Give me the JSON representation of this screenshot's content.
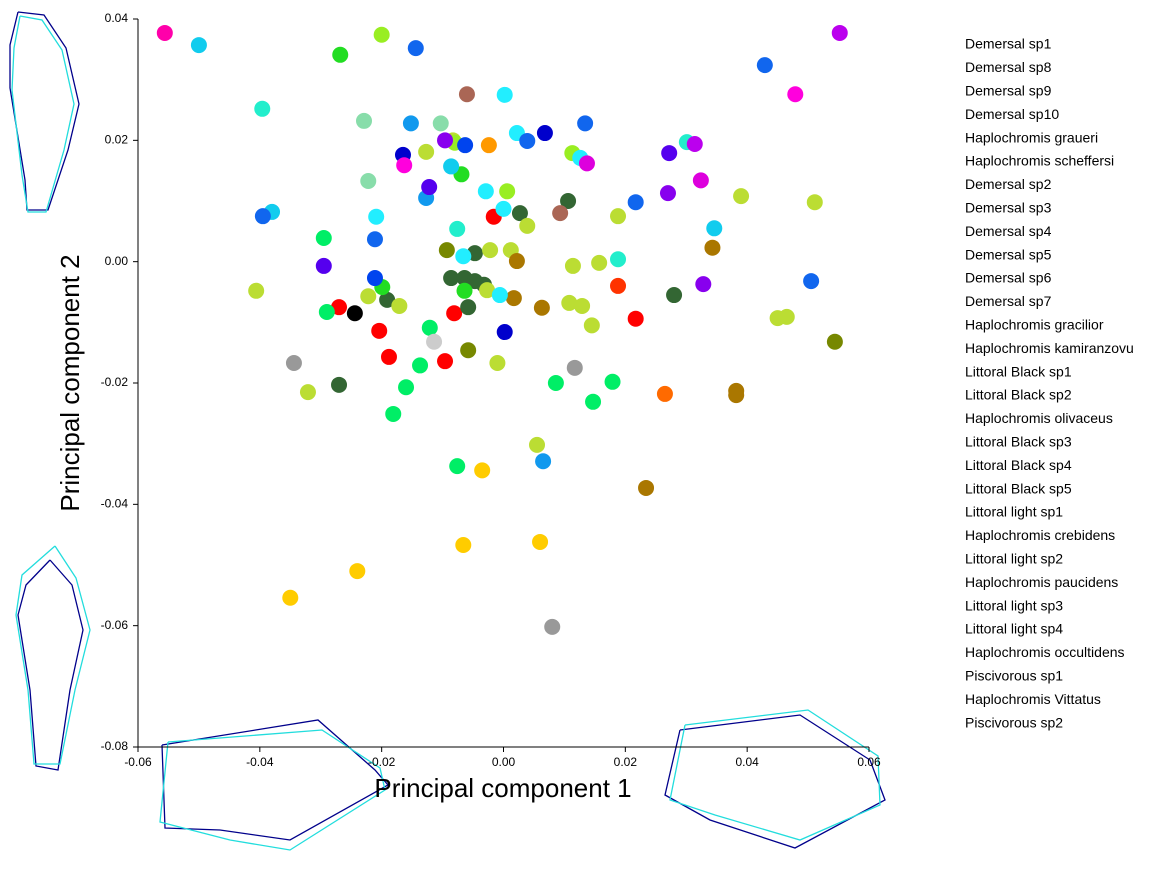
{
  "chart_data": {
    "type": "scatter",
    "x_label": "Principal component 1",
    "y_label": "Principal component 2",
    "xlim": [
      -0.06,
      0.06
    ],
    "ylim": [
      -0.08,
      0.04
    ],
    "xticks": [
      -0.06,
      -0.04,
      -0.02,
      {
        "value": 0,
        "label": "0.00"
      },
      0.02,
      0.04,
      0.06
    ],
    "yticks": [
      0.04,
      0.02,
      {
        "value": 0,
        "label": "0.00"
      },
      -0.02,
      -0.04,
      -0.06,
      -0.08
    ],
    "series": [
      {
        "name": "Demersal sp1",
        "color": "#ff0000",
        "x": [
          -0.0016,
          -0.0204,
          -0.0188,
          -0.0081,
          -0.0096,
          0.0217,
          -0.027
        ],
        "values": [
          0.0074,
          -0.0114,
          -0.0157,
          -0.0085,
          -0.0164,
          -0.0094,
          -0.0075
        ]
      },
      {
        "name": "Demersal sp8",
        "color": "#ff3300",
        "x": [
          0.0188
        ],
        "values": [
          -0.004
        ]
      },
      {
        "name": "Demersal sp9",
        "color": "#ff6a00",
        "x": [
          0.0265
        ],
        "values": [
          -0.0218
        ]
      },
      {
        "name": "Demersal sp10",
        "color": "#ff9900",
        "x": [
          -0.0024
        ],
        "values": [
          0.0192
        ]
      },
      {
        "name": "Haplochromis graueri",
        "color": "#ffcc00",
        "x": [
          -0.035,
          -0.024,
          -0.0066,
          0.006,
          -0.0035
        ],
        "values": [
          -0.0554,
          -0.051,
          -0.0467,
          -0.0462,
          -0.0344
        ]
      },
      {
        "name": "Haplochromis scheffersi",
        "color": "#336633",
        "x": [
          -0.027,
          0.0027,
          0.0106,
          0.028,
          -0.0086,
          -0.0064,
          -0.0047,
          -0.0032,
          -0.0058,
          -0.0191,
          -0.0047
        ],
        "values": [
          -0.0203,
          0.008,
          0.01,
          -0.0055,
          -0.0027,
          -0.0027,
          -0.0032,
          -0.0038,
          -0.0075,
          -0.0063,
          0.0014
        ]
      },
      {
        "name": "Demersal sp2",
        "color": "#bbdd33",
        "x": [
          -0.0406,
          -0.0321,
          -0.0222,
          -0.0171,
          -0.0127,
          -0.0083,
          -0.0027,
          0.0012,
          0.0039,
          -0.001,
          0.0055,
          0.0108,
          0.0129,
          0.0145,
          0.0157,
          0.0114,
          0.0188,
          0.039,
          0.0511,
          0.045,
          0.0465,
          -0.0022
        ],
        "values": [
          -0.0048,
          -0.0215,
          -0.0057,
          -0.0073,
          0.0181,
          0.02,
          -0.0047,
          0.0019,
          0.0059,
          -0.0167,
          -0.0302,
          -0.0068,
          -0.0073,
          -0.0105,
          -0.0002,
          -0.0007,
          0.0075,
          0.0108,
          0.0098,
          -0.0093,
          -0.0091,
          0.0019
        ]
      },
      {
        "name": "Demersal sp3",
        "color": "#99ee22",
        "x": [
          -0.02,
          0.0113,
          0.0006,
          -0.008
        ],
        "values": [
          0.0374,
          0.0179,
          0.0116,
          0.0196
        ]
      },
      {
        "name": "Demersal sp4",
        "color": "#778800",
        "x": [
          -0.0093,
          -0.0058,
          0.0544
        ],
        "values": [
          0.0019,
          -0.0146,
          -0.0132
        ]
      },
      {
        "name": "Demersal sp5",
        "color": "#aa7700",
        "x": [
          0.0022,
          0.0017,
          0.0063,
          0.0343,
          0.0382,
          0.0382,
          0.0234
        ],
        "values": [
          0.0001,
          -0.006,
          -0.0076,
          0.0023,
          -0.0213,
          -0.022,
          -0.0373
        ]
      },
      {
        "name": "Demersal sp6",
        "color": "#aa6655",
        "x": [
          -0.006,
          0.0093
        ],
        "values": [
          0.0276,
          0.008
        ]
      },
      {
        "name": "Demersal sp7",
        "color": "#22dd22",
        "x": [
          -0.0268,
          -0.0069,
          -0.0199,
          -0.0064
        ],
        "values": [
          0.0341,
          0.0144,
          -0.0042,
          -0.0048
        ]
      },
      {
        "name": "Haplochromis gracilior",
        "color": "#00ee66",
        "x": [
          -0.0295,
          -0.029,
          -0.0121,
          -0.0137,
          -0.016,
          -0.0181,
          -0.0076,
          0.0086,
          0.0147,
          0.0179
        ],
        "values": [
          0.0039,
          -0.0083,
          -0.0109,
          -0.0171,
          -0.0207,
          -0.0251,
          -0.0337,
          -0.02,
          -0.0231,
          -0.0198
        ]
      },
      {
        "name": "Haplochromis kamiranzovu",
        "color": "#88ddaa",
        "x": [
          -0.0229,
          -0.0222,
          -0.0103
        ],
        "values": [
          0.0232,
          0.0133,
          0.0228
        ]
      },
      {
        "name": "Littoral Black sp1",
        "color": "#22eecc",
        "x": [
          -0.0396,
          0.0301,
          0.0188,
          -0.0076
        ],
        "values": [
          0.0252,
          0.0197,
          0.0004,
          0.0054
        ]
      },
      {
        "name": "Littoral Black sp2",
        "color": "#22eeff",
        "x": [
          0.0002,
          0.0022,
          -0.0029,
          0.0,
          -0.0006,
          -0.0209,
          -0.0066,
          0.0126
        ],
        "values": [
          0.0275,
          0.0212,
          0.0116,
          0.0087,
          -0.0055,
          0.0074,
          0.0009,
          0.0171
        ]
      },
      {
        "name": "Haplochromis olivaceus",
        "color": "#11ccee",
        "x": [
          -0.05,
          -0.038,
          0.0346,
          -0.0086
        ],
        "values": [
          0.0357,
          0.0082,
          0.0055,
          0.0157
        ]
      },
      {
        "name": "Littoral Black sp3",
        "color": "#1199ee",
        "x": [
          -0.0152,
          -0.0127,
          0.0065
        ],
        "values": [
          0.0228,
          0.0105,
          -0.0329
        ]
      },
      {
        "name": "Littoral Black sp4",
        "color": "#1166ee",
        "x": [
          -0.0144,
          -0.0395,
          -0.0211,
          0.0134,
          0.0039,
          0.0217,
          0.0505,
          0.0429
        ],
        "values": [
          0.0352,
          0.0075,
          0.0037,
          0.0228,
          0.0199,
          0.0098,
          -0.0032,
          0.0324
        ]
      },
      {
        "name": "Littoral Black sp5",
        "color": "#0044ee",
        "x": [
          -0.0211,
          -0.0063
        ],
        "values": [
          -0.0027,
          0.0192
        ]
      },
      {
        "name": "Littoral light sp1",
        "color": "#0000cc",
        "x": [
          -0.0165,
          0.0002,
          0.0068
        ],
        "values": [
          0.0176,
          -0.0116,
          0.0212
        ]
      },
      {
        "name": "Haplochromis crebidens",
        "color": "#5500ee",
        "x": [
          -0.0122,
          -0.0295,
          0.0272
        ],
        "values": [
          0.0123,
          -0.0007,
          0.0179
        ]
      },
      {
        "name": "Littoral light sp2",
        "color": "#8800ee",
        "x": [
          -0.0096,
          0.027,
          0.0328
        ],
        "values": [
          0.02,
          0.0113,
          -0.0037
        ]
      },
      {
        "name": "Haplochromis paucidens",
        "color": "#bb00ee",
        "x": [
          0.0552,
          0.0314
        ],
        "values": [
          0.0377,
          0.0194
        ]
      },
      {
        "name": "Littoral light sp3",
        "color": "#dd00dd",
        "x": [
          0.0324,
          0.0137
        ],
        "values": [
          0.0134,
          0.0162
        ]
      },
      {
        "name": "Littoral light sp4",
        "color": "#ff00dd",
        "x": [
          0.0479,
          -0.0163
        ],
        "values": [
          0.0276,
          0.0159
        ]
      },
      {
        "name": "Haplochromis occultidens",
        "color": "#ff00aa",
        "x": [
          -0.0556
        ],
        "values": [
          0.0377
        ]
      },
      {
        "name": "Piscivorous sp1",
        "color": "#000000",
        "x": [
          -0.0244
        ],
        "values": [
          -0.0085
        ]
      },
      {
        "name": "Haplochromis Vittatus",
        "color": "#999999",
        "x": [
          -0.0344,
          0.0117,
          0.008
        ],
        "values": [
          -0.0167,
          -0.0175,
          -0.0602
        ]
      },
      {
        "name": "Piscivorous sp2",
        "color": "#cccccc",
        "x": [
          -0.0114
        ],
        "values": [
          -0.0132
        ]
      }
    ]
  }
}
